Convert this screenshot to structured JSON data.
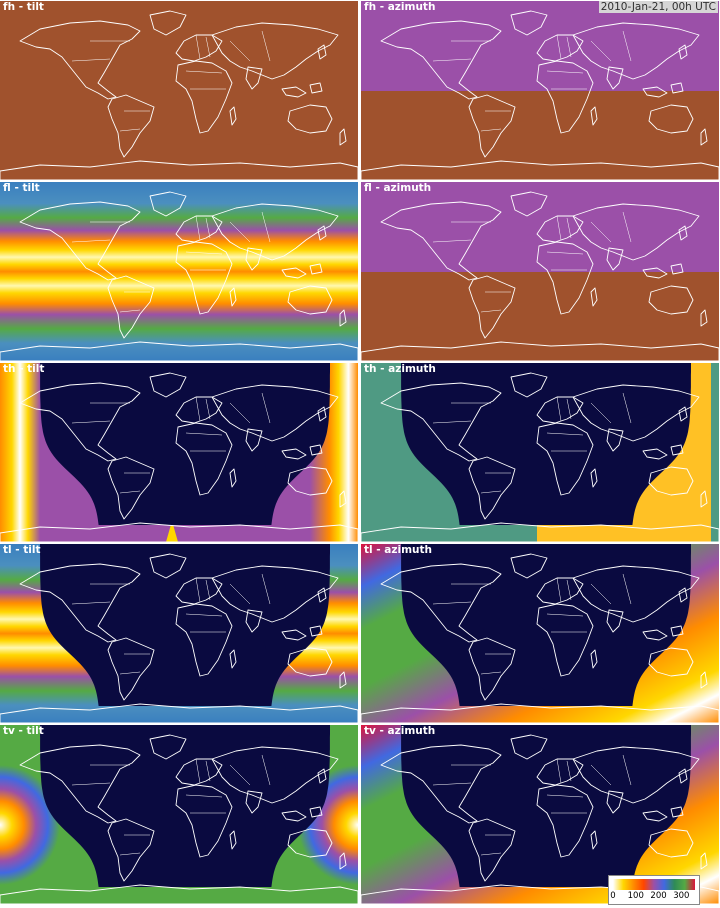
{
  "timestamp": "2010-Jan-21, 00h UTC",
  "panels": [
    {
      "id": "fh-tilt",
      "label": "fh - tilt",
      "kind": "uniform",
      "base": "#a0522d"
    },
    {
      "id": "fh-azimuth",
      "label": "fh - azimuth",
      "kind": "split",
      "north": "#9b50a8",
      "south": "#a0522d"
    },
    {
      "id": "fl-tilt",
      "label": "fl - tilt",
      "kind": "bands"
    },
    {
      "id": "fl-azimuth",
      "label": "fl - azimuth",
      "kind": "split",
      "north": "#9b50a8",
      "south": "#a0522d"
    },
    {
      "id": "th-tilt",
      "label": "th - tilt",
      "kind": "night-tilt",
      "day": "#9b50a8"
    },
    {
      "id": "th-azimuth",
      "label": "th - azimuth",
      "kind": "night-az",
      "west": "#4f9a83",
      "east": "#ffc125"
    },
    {
      "id": "tl-tilt",
      "label": "tl - tilt",
      "kind": "night-bands"
    },
    {
      "id": "tl-azimuth",
      "label": "tl - azimuth",
      "kind": "night-grad"
    },
    {
      "id": "tv-tilt",
      "label": "tv - tilt",
      "kind": "night-rings",
      "day": "#55aa44"
    },
    {
      "id": "tv-azimuth",
      "label": "tv - azimuth",
      "kind": "night-grad"
    }
  ],
  "night_color": "#0a0a40",
  "coastline_color": "#ffffff",
  "colorbar": {
    "ticks": [
      "0",
      "100",
      "200",
      "300"
    ],
    "tick_values": [
      0,
      100,
      200,
      300
    ],
    "max": 360,
    "colors": [
      "#ffffff",
      "#ffd700",
      "#ff8c00",
      "#ff4500",
      "#9b50a8",
      "#4169e1",
      "#2e8b57",
      "#55aa44",
      "#dc143c"
    ]
  }
}
